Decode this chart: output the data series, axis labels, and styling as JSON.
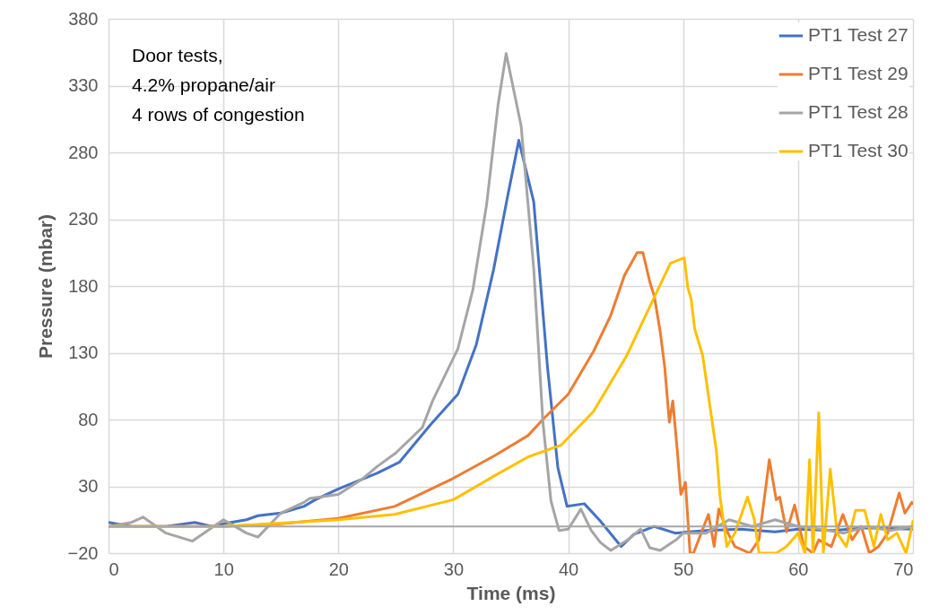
{
  "chart_data": {
    "type": "line",
    "xlabel": "Time (ms)",
    "ylabel": "Pressure (mbar)",
    "annotations": [
      "Door tests,",
      "4.2% propane/air",
      "4 rows of congestion"
    ],
    "xlim": [
      0,
      70
    ],
    "xticks": [
      0,
      10,
      20,
      30,
      40,
      50,
      60,
      70
    ],
    "ylim": [
      -20,
      380
    ],
    "yticks": [
      -20,
      30,
      80,
      130,
      180,
      230,
      280,
      330,
      380
    ],
    "grid": true,
    "legend": "top right",
    "line_style": "solid",
    "marker": "none",
    "ref_lines": [
      {
        "axis": "y",
        "value": 0,
        "color": "#a6a6a6"
      }
    ],
    "series": [
      {
        "name": "PT1 Test 27",
        "color": "#4472c4",
        "x": [
          0,
          2,
          5,
          7.5,
          9,
          10,
          12,
          13,
          15,
          17,
          18,
          20,
          23.4,
          25.3,
          28,
          30.4,
          32,
          33.5,
          34.7,
          35.7,
          37,
          38.2,
          39.1,
          39.9,
          41.4,
          42.8,
          44.6,
          45.7,
          47.5,
          49.3,
          52,
          55,
          58,
          60,
          63,
          66,
          70
        ],
        "values": [
          3,
          0,
          0,
          3,
          0,
          2,
          5,
          8,
          10,
          15,
          20,
          28,
          40,
          48,
          76,
          99,
          136,
          192,
          246,
          289,
          243,
          119,
          44,
          15,
          17,
          4,
          -15,
          -6,
          0,
          -5,
          -3,
          -2,
          -4,
          -2,
          -3,
          -1,
          -2
        ]
      },
      {
        "name": "PT1 Test 29",
        "color": "#ed7d31",
        "x": [
          0,
          10,
          15,
          20,
          24.9,
          30,
          33.6,
          36.5,
          37.9,
          40,
          42.2,
          43.7,
          44.9,
          46,
          46.5,
          47.1,
          47.5,
          48,
          48.4,
          48.8,
          49.1,
          49.5,
          49.8,
          50.2,
          50.6,
          50.9,
          52.2,
          52.7,
          53.1,
          53.9,
          54.5,
          55.8,
          56.6,
          57.5,
          58.1,
          58.4,
          59,
          59.7,
          60.5,
          61.3,
          61.8,
          62.9,
          63.9,
          64.7,
          65.5,
          66.2,
          67,
          67.8,
          68.8,
          69.3,
          69.9,
          70
        ],
        "values": [
          0,
          0,
          2,
          6,
          15,
          36,
          53,
          68,
          81,
          99,
          131,
          158,
          188,
          205,
          205,
          183,
          172,
          146,
          119,
          78,
          94,
          56,
          24,
          33,
          -20,
          -20,
          9,
          -15,
          13,
          -5,
          -15,
          -20,
          -10,
          50,
          20,
          22,
          -4,
          16,
          -15,
          -20,
          -10,
          -15,
          9,
          -10,
          0,
          -20,
          -15,
          -5,
          25,
          10,
          18,
          17
        ]
      },
      {
        "name": "PT1 Test 28",
        "color": "#a5a5a5",
        "x": [
          0,
          2,
          3,
          5,
          7.3,
          10,
          12,
          13,
          15,
          17,
          17.5,
          20,
          22,
          23.4,
          25,
          27.3,
          28.2,
          30.4,
          31.7,
          32.9,
          33.9,
          34.6,
          35.9,
          37,
          37.8,
          38.5,
          39.2,
          40,
          41.1,
          42,
          42.8,
          43.7,
          45.2,
          46.3,
          47.1,
          48,
          49.4,
          50,
          52,
          54,
          56,
          58,
          60,
          62,
          64,
          66,
          68,
          70
        ],
        "values": [
          0,
          3,
          7,
          -5,
          -11,
          5,
          -5,
          -8,
          10,
          18,
          21,
          24,
          35,
          45,
          55,
          74,
          94,
          133,
          177,
          241,
          316,
          354,
          300,
          193,
          78,
          19,
          -3,
          -2,
          13,
          -3,
          -12,
          -18,
          -10,
          -2,
          -16,
          -18,
          -10,
          -5,
          -5,
          5,
          0,
          5,
          0,
          -2,
          -5,
          0,
          -3,
          0
        ]
      },
      {
        "name": "PT1 Test 30",
        "color": "#ffc000",
        "x": [
          0,
          10,
          20,
          24.9,
          30,
          33.6,
          36.5,
          39.4,
          42.2,
          45.1,
          47.4,
          48.9,
          50.1,
          50.4,
          50.7,
          51,
          51.7,
          52.9,
          53.2,
          53.8,
          54.5,
          55.6,
          56.2,
          56.6,
          57.1,
          58.1,
          59,
          60,
          60.6,
          61,
          61.3,
          61.8,
          62.2,
          62.8,
          63.4,
          64.2,
          65,
          65.8,
          66.6,
          67.2,
          67.8,
          68.6,
          69.4,
          70
        ],
        "values": [
          0,
          0,
          5,
          9,
          20,
          38,
          52,
          61,
          86,
          128,
          170,
          197,
          201,
          179,
          170,
          148,
          128,
          56,
          23,
          -15,
          -5,
          22,
          5,
          -20,
          -20,
          -20,
          -15,
          -5,
          -20,
          50,
          -20,
          85,
          -20,
          43,
          -5,
          -15,
          12,
          12,
          -15,
          9,
          -10,
          -5,
          -20,
          4
        ]
      }
    ]
  }
}
